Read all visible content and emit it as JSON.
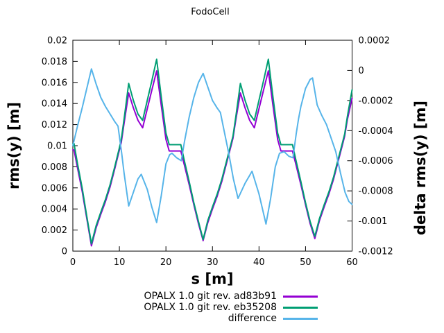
{
  "chart": {
    "title": "FodoCell",
    "xlabel": "s [m]",
    "ylabel": "rms(y) [m]",
    "y2label": "delta rms(y) [m]"
  },
  "legend": {
    "entries": [
      {
        "label": "OPALX 1.0 git rev. ad83b91",
        "color": "#9400d3"
      },
      {
        "label": "OPALX 1.0 git rev. eb35208",
        "color": "#009e73"
      },
      {
        "label": "difference",
        "color": "#56b4e9"
      }
    ]
  },
  "chart_data": {
    "type": "line",
    "title": "FodoCell",
    "xlabel": "s [m]",
    "ylabel": "rms(y) [m]",
    "y2label": "delta rms(y) [m]",
    "xlim": [
      0,
      60
    ],
    "ylim": [
      0,
      0.02
    ],
    "y2lim": [
      -0.0012,
      0.0002
    ],
    "grid": false,
    "legend_position": "below-right",
    "xticks": {
      "values": [
        0,
        10,
        20,
        30,
        40,
        50,
        60
      ],
      "labels": [
        "0",
        "10",
        "20",
        "30",
        "40",
        "50",
        "60"
      ]
    },
    "yticks": {
      "values": [
        0,
        0.002,
        0.004,
        0.006,
        0.008,
        0.01,
        0.012,
        0.014,
        0.016,
        0.018,
        0.02
      ],
      "labels": [
        "0",
        "0.002",
        "0.004",
        "0.006",
        "0.008",
        "0.01",
        "0.012",
        "0.014",
        "0.016",
        "0.018",
        "0.02"
      ]
    },
    "y2ticks": {
      "values": [
        0.0002,
        0,
        -0.0002,
        -0.0004,
        -0.0006,
        -0.0008,
        -0.001,
        -0.0012
      ],
      "labels": [
        "0.0002",
        "0",
        "-0.0002",
        "-0.0004",
        "-0.0006",
        "-0.0008",
        "-0.001",
        "-0.0012"
      ]
    },
    "series": [
      {
        "name": "OPALX 1.0 git rev. ad83b91",
        "axis": "y1",
        "color": "#9400d3",
        "points": [
          [
            0,
            0.0096
          ],
          [
            0.25,
            0.0096
          ],
          [
            1,
            0.0079
          ],
          [
            2,
            0.0057
          ],
          [
            3,
            0.0031
          ],
          [
            4,
            0.0005
          ],
          [
            5,
            0.0022
          ],
          [
            6,
            0.0035
          ],
          [
            7,
            0.0047
          ],
          [
            8,
            0.0061
          ],
          [
            9,
            0.0078
          ],
          [
            10,
            0.0096
          ],
          [
            10.4,
            0.0103
          ],
          [
            11,
            0.0121
          ],
          [
            12,
            0.015
          ],
          [
            13,
            0.0136
          ],
          [
            14,
            0.0124
          ],
          [
            15,
            0.0117
          ],
          [
            16,
            0.0135
          ],
          [
            17,
            0.0153
          ],
          [
            18,
            0.0171
          ],
          [
            19,
            0.0138
          ],
          [
            20,
            0.0106
          ],
          [
            20.7,
            0.0095
          ],
          [
            23.2,
            0.0095
          ],
          [
            24,
            0.0081
          ],
          [
            25,
            0.0063
          ],
          [
            26,
            0.0044
          ],
          [
            27,
            0.0026
          ],
          [
            28,
            0.001
          ],
          [
            29,
            0.0027
          ],
          [
            30,
            0.004
          ],
          [
            31,
            0.0052
          ],
          [
            32,
            0.0066
          ],
          [
            33,
            0.0083
          ],
          [
            34,
            0.01
          ],
          [
            34.4,
            0.0107
          ],
          [
            35,
            0.0124
          ],
          [
            36,
            0.015
          ],
          [
            37,
            0.0136
          ],
          [
            38,
            0.0124
          ],
          [
            39,
            0.0117
          ],
          [
            40,
            0.0135
          ],
          [
            41,
            0.0153
          ],
          [
            42,
            0.0171
          ],
          [
            43,
            0.0138
          ],
          [
            44,
            0.0106
          ],
          [
            44.7,
            0.0095
          ],
          [
            47.2,
            0.0095
          ],
          [
            48,
            0.0081
          ],
          [
            49,
            0.0063
          ],
          [
            50,
            0.0044
          ],
          [
            51,
            0.0026
          ],
          [
            52,
            0.0012
          ],
          [
            53,
            0.0029
          ],
          [
            54,
            0.0042
          ],
          [
            55,
            0.0054
          ],
          [
            56,
            0.0068
          ],
          [
            57,
            0.0085
          ],
          [
            58,
            0.0102
          ],
          [
            58.4,
            0.0109
          ],
          [
            59,
            0.0125
          ],
          [
            60,
            0.0145
          ]
        ]
      },
      {
        "name": "OPALX 1.0 git rev. eb35208",
        "axis": "y1",
        "color": "#009e73",
        "points": [
          [
            0,
            0.0102
          ],
          [
            0.25,
            0.0102
          ],
          [
            1,
            0.0083
          ],
          [
            2,
            0.006
          ],
          [
            3,
            0.0033
          ],
          [
            4,
            0.0007
          ],
          [
            5,
            0.0024
          ],
          [
            6,
            0.0037
          ],
          [
            7,
            0.0049
          ],
          [
            8,
            0.0063
          ],
          [
            9,
            0.008
          ],
          [
            10,
            0.0098
          ],
          [
            10.4,
            0.0106
          ],
          [
            11,
            0.0125
          ],
          [
            12,
            0.0159
          ],
          [
            13,
            0.0143
          ],
          [
            14,
            0.013
          ],
          [
            15,
            0.0124
          ],
          [
            16,
            0.0143
          ],
          [
            17,
            0.0162
          ],
          [
            18,
            0.0182
          ],
          [
            19,
            0.0146
          ],
          [
            20,
            0.0112
          ],
          [
            20.7,
            0.0101
          ],
          [
            23.2,
            0.0101
          ],
          [
            24,
            0.0085
          ],
          [
            25,
            0.0066
          ],
          [
            26,
            0.0046
          ],
          [
            27,
            0.0028
          ],
          [
            28,
            0.0011
          ],
          [
            29,
            0.0029
          ],
          [
            30,
            0.0042
          ],
          [
            31,
            0.0054
          ],
          [
            32,
            0.0068
          ],
          [
            33,
            0.0085
          ],
          [
            34,
            0.0102
          ],
          [
            34.4,
            0.0109
          ],
          [
            35,
            0.0127
          ],
          [
            36,
            0.0159
          ],
          [
            37,
            0.0143
          ],
          [
            38,
            0.013
          ],
          [
            39,
            0.0124
          ],
          [
            40,
            0.0143
          ],
          [
            41,
            0.0162
          ],
          [
            42,
            0.0182
          ],
          [
            43,
            0.0146
          ],
          [
            44,
            0.0112
          ],
          [
            44.7,
            0.0101
          ],
          [
            47.2,
            0.0101
          ],
          [
            48,
            0.0085
          ],
          [
            49,
            0.0066
          ],
          [
            50,
            0.0046
          ],
          [
            51,
            0.0028
          ],
          [
            52,
            0.0014
          ],
          [
            53,
            0.0031
          ],
          [
            54,
            0.0044
          ],
          [
            55,
            0.0056
          ],
          [
            56,
            0.007
          ],
          [
            57,
            0.0087
          ],
          [
            58,
            0.0104
          ],
          [
            58.4,
            0.0111
          ],
          [
            59,
            0.0128
          ],
          [
            60,
            0.0153
          ]
        ]
      },
      {
        "name": "difference",
        "axis": "y2",
        "color": "#56b4e9",
        "points": [
          [
            0,
            -0.0005
          ],
          [
            1,
            -0.00037
          ],
          [
            2,
            -0.00025
          ],
          [
            3,
            -0.00012
          ],
          [
            4,
            1e-05
          ],
          [
            5,
            -9e-05
          ],
          [
            6,
            -0.00018
          ],
          [
            7,
            -0.00024
          ],
          [
            8,
            -0.00029
          ],
          [
            9,
            -0.00034
          ],
          [
            9.7,
            -0.00037
          ],
          [
            10.5,
            -0.00055
          ],
          [
            11,
            -0.00068
          ],
          [
            12,
            -0.0009
          ],
          [
            13,
            -0.00081
          ],
          [
            14,
            -0.00072
          ],
          [
            14.7,
            -0.00069
          ],
          [
            16,
            -0.00079
          ],
          [
            17,
            -0.00091
          ],
          [
            18,
            -0.00101
          ],
          [
            19,
            -0.00083
          ],
          [
            20,
            -0.00062
          ],
          [
            20.8,
            -0.00056
          ],
          [
            21.3,
            -0.00055
          ],
          [
            22.3,
            -0.00058
          ],
          [
            23.3,
            -0.0006
          ],
          [
            24,
            -0.00047
          ],
          [
            25,
            -0.00031
          ],
          [
            26,
            -0.00018
          ],
          [
            27,
            -8e-05
          ],
          [
            28,
            -2e-05
          ],
          [
            29,
            -0.00011
          ],
          [
            30,
            -0.0002
          ],
          [
            31,
            -0.00025
          ],
          [
            31.7,
            -0.00028
          ],
          [
            32.5,
            -0.0004
          ],
          [
            33.5,
            -0.00055
          ],
          [
            34.5,
            -0.00072
          ],
          [
            35.5,
            -0.00085
          ],
          [
            37,
            -0.00075
          ],
          [
            38.5,
            -0.00067
          ],
          [
            40,
            -0.00082
          ],
          [
            41.5,
            -0.00102
          ],
          [
            42.5,
            -0.00085
          ],
          [
            43.5,
            -0.00064
          ],
          [
            44.4,
            -0.00055
          ],
          [
            45.4,
            -0.00054
          ],
          [
            46.4,
            -0.00057
          ],
          [
            47.3,
            -0.00058
          ],
          [
            48,
            -0.00042
          ],
          [
            48.5,
            -0.00032
          ],
          [
            49,
            -0.00024
          ],
          [
            50,
            -0.00012
          ],
          [
            51,
            -6e-05
          ],
          [
            51.5,
            -5e-05
          ],
          [
            52.5,
            -0.00023
          ],
          [
            53.5,
            -0.0003
          ],
          [
            54.5,
            -0.00036
          ],
          [
            55.5,
            -0.00045
          ],
          [
            56.5,
            -0.00054
          ],
          [
            57.5,
            -0.00068
          ],
          [
            58.5,
            -0.00081
          ],
          [
            59.3,
            -0.00087
          ],
          [
            60,
            -0.00089
          ]
        ]
      }
    ]
  }
}
